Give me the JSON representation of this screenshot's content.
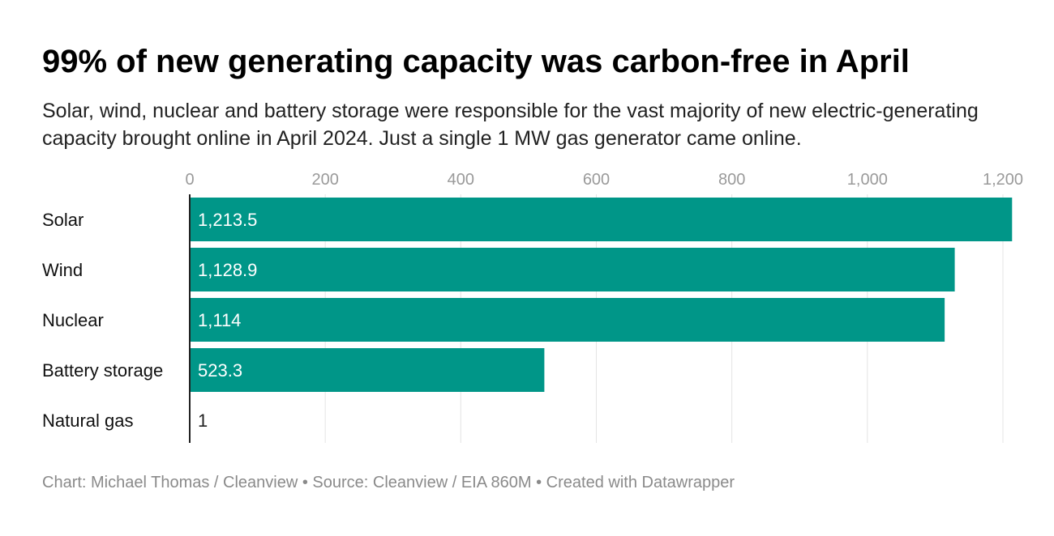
{
  "title": "99% of new generating capacity was carbon-free in April",
  "subtitle": "Solar, wind, nuclear and battery storage were responsible for the vast majority of new electric-generating capacity brought online in April 2024. Just a single 1 MW gas generator came online.",
  "footer": "Chart: Michael Thomas / Cleanview • Source: Cleanview / EIA 860M • Created with Datawrapper",
  "colors": {
    "bar": "#009688",
    "grid": "#e4e4e4",
    "axis": "#222222",
    "tick": "#9a9a9a",
    "label_inside": "#ffffff",
    "label_outside": "#222222"
  },
  "chart_data": {
    "type": "bar",
    "orientation": "horizontal",
    "categories": [
      "Solar",
      "Wind",
      "Nuclear",
      "Battery storage",
      "Natural gas"
    ],
    "values": [
      1213.5,
      1128.9,
      1114,
      523.3,
      1
    ],
    "value_labels": [
      "1,213.5",
      "1,128.9",
      "1,114",
      "523.3",
      "1"
    ],
    "xticks": [
      0,
      200,
      400,
      600,
      800,
      1000,
      1200
    ],
    "xtick_labels": [
      "0",
      "200",
      "400",
      "600",
      "800",
      "1,000",
      "1,200"
    ],
    "xlim": [
      0,
      1200
    ],
    "axis_position": "top",
    "grid": true,
    "legend": false
  }
}
